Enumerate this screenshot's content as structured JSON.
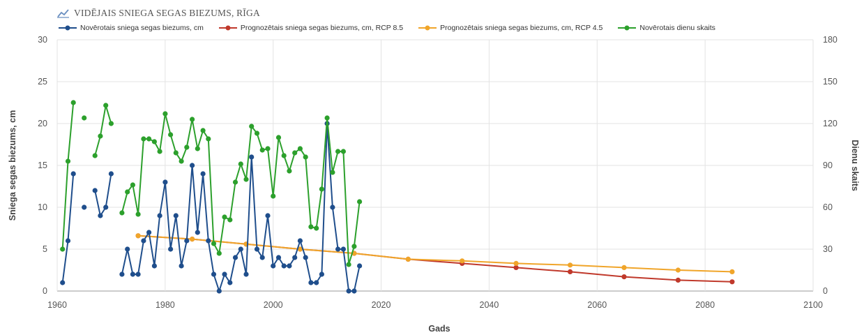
{
  "chart_data": {
    "type": "line",
    "title": "VIDĒJAIS SNIEGA SEGAS BIEZUMS, RĪGA",
    "xlabel": "Gads",
    "ylabel": "Sniega segas biezums, cm",
    "y2label": "Dienu skaits",
    "xlim": [
      1960,
      2100
    ],
    "ylim": [
      0,
      30
    ],
    "y2lim": [
      0,
      180
    ],
    "x_ticks": [
      "1960",
      "1980",
      "2000",
      "2020",
      "2040",
      "2060",
      "2080",
      "2100"
    ],
    "y_ticks": [
      "0",
      "5",
      "10",
      "15",
      "20",
      "25",
      "30"
    ],
    "y2_ticks": [
      "0",
      "30",
      "60",
      "90",
      "120",
      "150",
      "180"
    ],
    "grid": true,
    "legend_position": "top",
    "series": [
      {
        "name": "Novērotais sniega segas biezums, cm",
        "color": "#1f4e8c",
        "axis": "left",
        "points": [
          [
            1961,
            1
          ],
          [
            1962,
            6
          ],
          [
            1963,
            14
          ],
          null,
          [
            1965,
            10
          ],
          null,
          [
            1967,
            12
          ],
          [
            1968,
            9
          ],
          [
            1969,
            10
          ],
          [
            1970,
            14
          ],
          null,
          [
            1972,
            2
          ],
          [
            1973,
            5
          ],
          [
            1974,
            2
          ],
          [
            1975,
            2
          ],
          [
            1976,
            6
          ],
          [
            1977,
            7
          ],
          [
            1978,
            3
          ],
          [
            1979,
            9
          ],
          [
            1980,
            13
          ],
          [
            1981,
            5
          ],
          [
            1982,
            9
          ],
          [
            1983,
            3
          ],
          [
            1984,
            6
          ],
          [
            1985,
            15
          ],
          [
            1986,
            7
          ],
          [
            1987,
            14
          ],
          [
            1988,
            6
          ],
          [
            1989,
            2
          ],
          [
            1990,
            0
          ],
          [
            1991,
            2
          ],
          [
            1992,
            1
          ],
          [
            1993,
            4
          ],
          [
            1994,
            5
          ],
          [
            1995,
            2
          ],
          [
            1996,
            16
          ],
          [
            1997,
            5
          ],
          [
            1998,
            4
          ],
          [
            1999,
            9
          ],
          [
            2000,
            3
          ],
          [
            2001,
            4
          ],
          [
            2002,
            3
          ],
          [
            2003,
            3
          ],
          [
            2004,
            4
          ],
          [
            2005,
            6
          ],
          [
            2006,
            4
          ],
          [
            2007,
            1
          ],
          [
            2008,
            1
          ],
          [
            2009,
            2
          ],
          [
            2010,
            20
          ],
          [
            2011,
            10
          ],
          [
            2012,
            5
          ],
          [
            2013,
            5
          ],
          [
            2014,
            0
          ],
          [
            2015,
            0
          ],
          [
            2016,
            3
          ]
        ]
      },
      {
        "name": "Prognozētais sniega segas biezums, cm, RCP 8.5",
        "color": "#c0392b",
        "axis": "left",
        "points": [
          [
            1975,
            6.6
          ],
          [
            1985,
            6.2
          ],
          [
            1995,
            5.6
          ],
          [
            2005,
            5.0
          ],
          [
            2015,
            4.5
          ],
          [
            2025,
            3.8
          ],
          [
            2035,
            3.3
          ],
          [
            2045,
            2.8
          ],
          [
            2055,
            2.3
          ],
          [
            2065,
            1.7
          ],
          [
            2075,
            1.3
          ],
          [
            2085,
            1.1
          ]
        ]
      },
      {
        "name": "Prognozētais sniega segas biezums, cm, RCP 4.5",
        "color": "#f0a52a",
        "axis": "left",
        "points": [
          [
            1975,
            6.6
          ],
          [
            1985,
            6.2
          ],
          [
            1995,
            5.6
          ],
          [
            2005,
            5.0
          ],
          [
            2015,
            4.5
          ],
          [
            2025,
            3.8
          ],
          [
            2035,
            3.6
          ],
          [
            2045,
            3.3
          ],
          [
            2055,
            3.1
          ],
          [
            2065,
            2.8
          ],
          [
            2075,
            2.5
          ],
          [
            2085,
            2.3
          ]
        ]
      },
      {
        "name": "Novērotais dienu skaits",
        "color": "#2ca02c",
        "axis": "right",
        "points": [
          [
            1961,
            30
          ],
          [
            1962,
            93
          ],
          [
            1963,
            135
          ],
          null,
          [
            1965,
            124
          ],
          null,
          [
            1967,
            97
          ],
          [
            1968,
            111
          ],
          [
            1969,
            133
          ],
          [
            1970,
            120
          ],
          null,
          [
            1972,
            56
          ],
          [
            1973,
            71
          ],
          [
            1974,
            76
          ],
          [
            1975,
            55
          ],
          [
            1976,
            109
          ],
          [
            1977,
            109
          ],
          [
            1978,
            107
          ],
          [
            1979,
            100
          ],
          [
            1980,
            127
          ],
          [
            1981,
            112
          ],
          [
            1982,
            99
          ],
          [
            1983,
            93
          ],
          [
            1984,
            103
          ],
          [
            1985,
            123
          ],
          [
            1986,
            102
          ],
          [
            1987,
            115
          ],
          [
            1988,
            109
          ],
          [
            1989,
            34
          ],
          [
            1990,
            27
          ],
          [
            1991,
            53
          ],
          [
            1992,
            51
          ],
          [
            1993,
            78
          ],
          [
            1994,
            91
          ],
          [
            1995,
            80
          ],
          [
            1996,
            118
          ],
          [
            1997,
            113
          ],
          [
            1998,
            101
          ],
          [
            1999,
            102
          ],
          [
            2000,
            68
          ],
          [
            2001,
            110
          ],
          [
            2002,
            97
          ],
          [
            2003,
            86
          ],
          [
            2004,
            99
          ],
          [
            2005,
            102
          ],
          [
            2006,
            96
          ],
          [
            2007,
            46
          ],
          [
            2008,
            45
          ],
          [
            2009,
            73
          ],
          [
            2010,
            124
          ],
          [
            2011,
            85
          ],
          [
            2012,
            100
          ],
          [
            2013,
            100
          ],
          [
            2014,
            19
          ],
          [
            2015,
            32
          ],
          [
            2016,
            64
          ]
        ]
      }
    ]
  }
}
